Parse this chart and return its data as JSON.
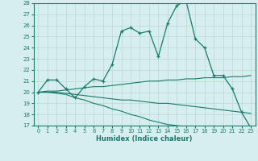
{
  "xlabel": "Humidex (Indice chaleur)",
  "background_color": "#d6eeee",
  "grid_color": "#b8d8d8",
  "line_color": "#1a7a6e",
  "xlim": [
    -0.5,
    23.5
  ],
  "ylim": [
    17,
    28
  ],
  "yticks": [
    17,
    18,
    19,
    20,
    21,
    22,
    23,
    24,
    25,
    26,
    27,
    28
  ],
  "xticks": [
    0,
    1,
    2,
    3,
    4,
    5,
    6,
    7,
    8,
    9,
    10,
    11,
    12,
    13,
    14,
    15,
    16,
    17,
    18,
    19,
    20,
    21,
    22,
    23
  ],
  "line1_x": [
    0,
    1,
    2,
    3,
    4,
    5,
    6,
    7,
    8,
    9,
    10,
    11,
    12,
    13,
    14,
    15,
    16,
    17,
    18,
    19,
    20,
    21,
    22,
    23
  ],
  "line1_y": [
    20,
    21.1,
    21.1,
    20.3,
    19.5,
    20.5,
    21.2,
    21.0,
    22.5,
    25.5,
    25.8,
    25.3,
    25.5,
    23.2,
    26.2,
    27.8,
    28.2,
    24.8,
    24.0,
    21.5,
    21.5,
    20.3,
    18.2,
    16.8
  ],
  "line2_x": [
    0,
    1,
    2,
    3,
    4,
    5,
    6,
    7,
    8,
    9,
    10,
    11,
    12,
    13,
    14,
    15,
    16,
    17,
    18,
    19,
    20,
    21,
    22,
    23
  ],
  "line2_y": [
    20.0,
    20.1,
    20.1,
    20.2,
    20.3,
    20.4,
    20.5,
    20.5,
    20.6,
    20.7,
    20.8,
    20.9,
    21.0,
    21.0,
    21.1,
    21.1,
    21.2,
    21.2,
    21.3,
    21.3,
    21.3,
    21.4,
    21.4,
    21.5
  ],
  "line3_x": [
    0,
    1,
    2,
    3,
    4,
    5,
    6,
    7,
    8,
    9,
    10,
    11,
    12,
    13,
    14,
    15,
    16,
    17,
    18,
    19,
    20,
    21,
    22,
    23
  ],
  "line3_y": [
    20.0,
    20.0,
    20.0,
    19.9,
    19.8,
    19.7,
    19.6,
    19.5,
    19.4,
    19.3,
    19.3,
    19.2,
    19.1,
    19.0,
    19.0,
    18.9,
    18.8,
    18.7,
    18.6,
    18.5,
    18.4,
    18.3,
    18.2,
    18.1
  ],
  "line4_x": [
    0,
    1,
    2,
    3,
    4,
    5,
    6,
    7,
    8,
    9,
    10,
    11,
    12,
    13,
    14,
    15,
    16,
    17,
    18,
    19,
    20,
    21,
    22,
    23
  ],
  "line4_y": [
    20.0,
    20.0,
    19.9,
    19.8,
    19.5,
    19.3,
    19.0,
    18.8,
    18.5,
    18.3,
    18.0,
    17.8,
    17.5,
    17.3,
    17.1,
    17.0,
    16.9,
    16.8,
    16.7,
    16.6,
    16.6,
    16.5,
    16.5,
    16.5
  ]
}
